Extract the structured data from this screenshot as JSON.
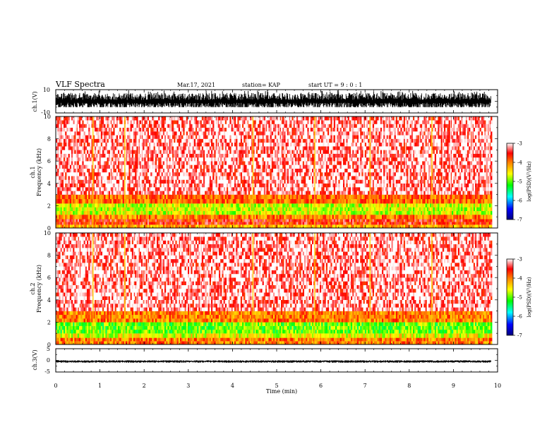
{
  "header": {
    "title": "VLF Spectra",
    "date": "Mar.17, 2021",
    "station": "station= KAP",
    "start_ut": "start  UT =  9 : 0  : 1"
  },
  "chart_data": [
    {
      "type": "line",
      "id": "ch1-waveform",
      "ylabel": "ch.1(V)",
      "xlim": [
        0,
        10
      ],
      "ylim": [
        -10,
        10
      ],
      "yticks": [
        "10",
        "-10"
      ],
      "data_extent_min": 9.85,
      "envelope": {
        "low": -5,
        "high": 9.5,
        "typical_low": -3,
        "typical_high": 3
      }
    },
    {
      "type": "heatmap",
      "id": "ch1-spectrogram",
      "ylabel": "ch.1\nFrequency (kHz)",
      "xlim": [
        0,
        10
      ],
      "ylim": [
        0,
        10
      ],
      "yticks": [
        "0",
        "2",
        "4",
        "6",
        "8",
        "10"
      ],
      "colorbar": {
        "label": "log(PSD)(V²/Hz)",
        "range": [
          -7,
          -3
        ],
        "ticks": [
          "-3",
          "-4",
          "-5",
          "-6",
          "-7"
        ]
      },
      "bands_khz": [
        {
          "from": 0.0,
          "to": 0.3,
          "level": -4.2
        },
        {
          "from": 0.3,
          "to": 0.8,
          "level": -3.6
        },
        {
          "from": 0.8,
          "to": 1.2,
          "level": -4.0
        },
        {
          "from": 1.2,
          "to": 2.2,
          "level": -4.7
        },
        {
          "from": 2.2,
          "to": 3.0,
          "level": -3.9
        },
        {
          "from": 3.0,
          "to": 10.0,
          "level": -3.3
        }
      ],
      "vertical_bursts_min": [
        0.83,
        1.55,
        4.45,
        5.85,
        7.1,
        8.5
      ]
    },
    {
      "type": "heatmap",
      "id": "ch2-spectrogram",
      "ylabel": "ch.2\nFrequency (kHz)",
      "xlim": [
        0,
        10
      ],
      "ylim": [
        0,
        10
      ],
      "yticks": [
        "0",
        "2",
        "4",
        "6",
        "8",
        "10"
      ],
      "colorbar": {
        "label": "log(PSD)(V²/Hz)",
        "range": [
          -7,
          -3
        ],
        "ticks": [
          "-3",
          "-4",
          "-5",
          "-6",
          "-7"
        ]
      },
      "bands_khz": [
        {
          "from": 0.0,
          "to": 0.6,
          "level": -4.0
        },
        {
          "from": 0.6,
          "to": 1.0,
          "level": -4.6
        },
        {
          "from": 1.0,
          "to": 2.0,
          "level": -5.0
        },
        {
          "from": 2.0,
          "to": 3.0,
          "level": -4.0
        },
        {
          "from": 3.0,
          "to": 10.0,
          "level": -3.3
        }
      ],
      "vertical_bursts_min": [
        0.83,
        1.55,
        4.45,
        5.85,
        7.1,
        8.5
      ]
    },
    {
      "type": "line",
      "id": "ch3-waveform",
      "ylabel": "ch.3(V)",
      "xlabel": "Time (min)",
      "xlim": [
        0,
        10
      ],
      "ylim": [
        -5,
        5
      ],
      "yticks": [
        "5",
        "0",
        "-5"
      ],
      "xticks": [
        "0",
        "1",
        "2",
        "3",
        "4",
        "5",
        "6",
        "7",
        "8",
        "9",
        "10"
      ],
      "data_extent_min": 9.85,
      "envelope": {
        "low": -1.0,
        "high": 0.0,
        "typical_low": -0.7,
        "typical_high": -0.2
      }
    }
  ],
  "colors": {
    "colormap": [
      "#00007f",
      "#0000ff",
      "#00ffff",
      "#00ff00",
      "#ffff00",
      "#ff7f00",
      "#ff0000",
      "#ffffff"
    ],
    "trace": "#000000"
  }
}
